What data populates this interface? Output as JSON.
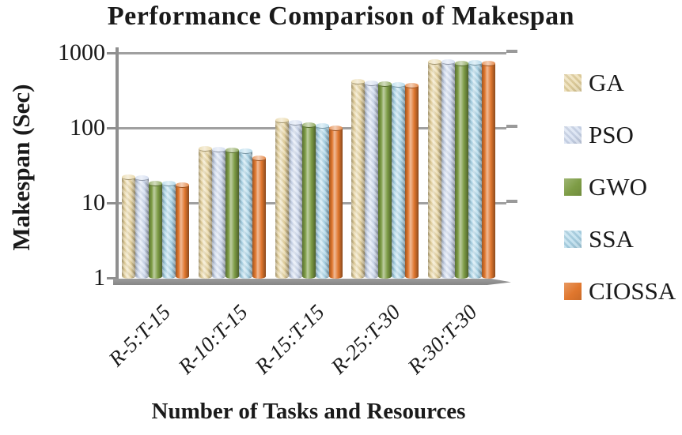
{
  "title": "Performance Comparison of Makespan",
  "chart_data": {
    "type": "bar",
    "style": "3d-cylinder",
    "title": "Performance Comparison of Makespan",
    "xlabel": "Number of Tasks and Resources",
    "ylabel": "Makespan (Sec)",
    "y_scale": "log10",
    "ylim": [
      1,
      1000
    ],
    "y_ticks": [
      "1",
      "10",
      "100",
      "1000"
    ],
    "grid": true,
    "legend_position": "right",
    "gridline_color": "#a0a0a0",
    "axis_color": "#8f8f8f",
    "categories": [
      "R-5:T-15",
      "R-10:T-15",
      "R-15:T-15",
      "R-25:T-30",
      "R-30:T-30"
    ],
    "series": [
      {
        "name": "GA",
        "color": "#e6d29b",
        "textured": true,
        "values": [
          23,
          55,
          130,
          430,
          790
        ]
      },
      {
        "name": "PSO",
        "color": "#ccd8ee",
        "textured": true,
        "values": [
          22,
          53,
          120,
          410,
          780
        ]
      },
      {
        "name": "GWO",
        "color": "#7d9c45",
        "textured": false,
        "values": [
          19,
          52,
          112,
          395,
          750
        ]
      },
      {
        "name": "SSA",
        "color": "#a8d4e8",
        "textured": true,
        "values": [
          19,
          51,
          110,
          385,
          760
        ]
      },
      {
        "name": "CIOSSA",
        "color": "#e0772e",
        "textured": false,
        "values": [
          18,
          41,
          102,
          378,
          740
        ]
      }
    ]
  }
}
